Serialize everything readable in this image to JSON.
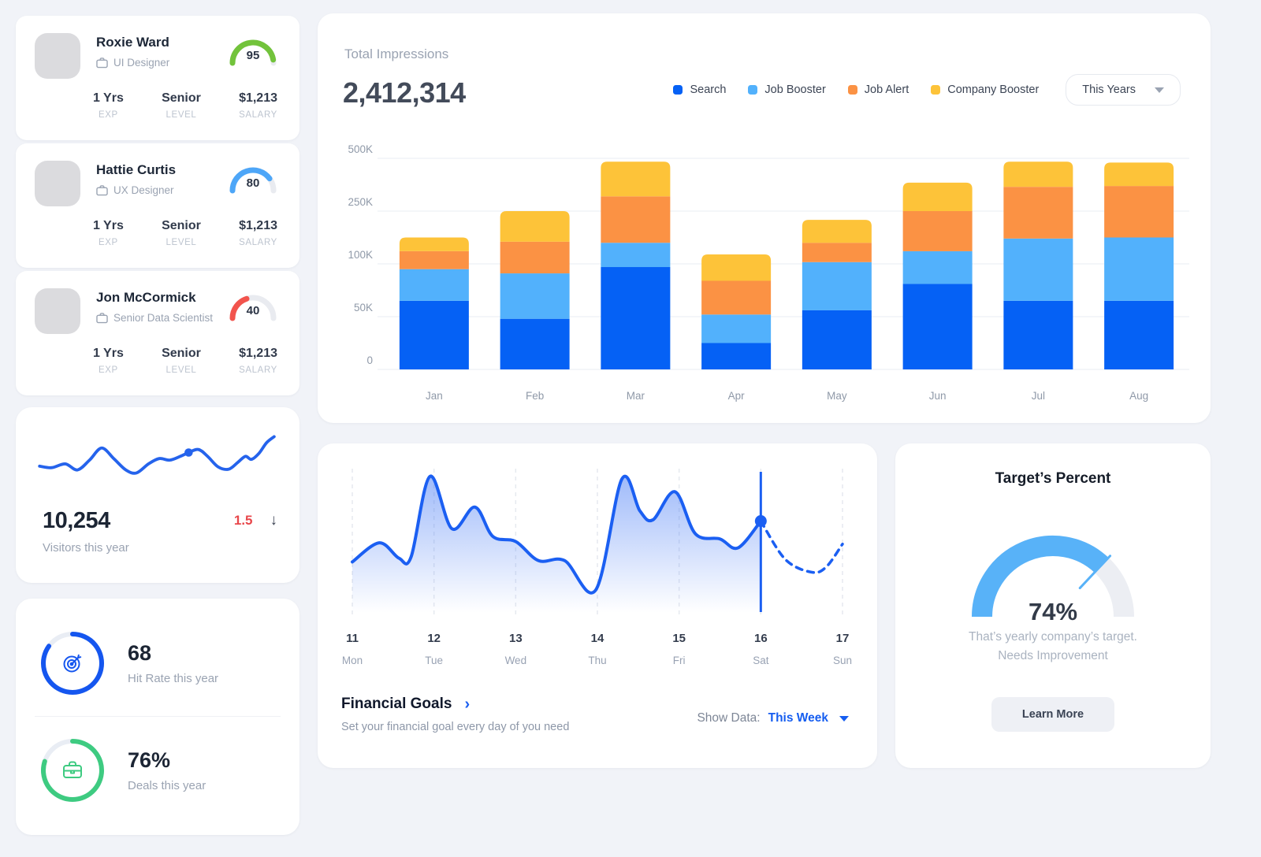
{
  "employees": {
    "items": [
      {
        "name": "Roxie Ward",
        "role": "UI Designer",
        "score": 95,
        "gauge_color": "#72c33b",
        "stats": {
          "exp_value": "1 Yrs",
          "exp_label": "EXP",
          "level_value": "Senior",
          "level_label": "LEVEL",
          "salary_value": "$1,213",
          "salary_label": "SALARY"
        }
      },
      {
        "name": "Hattie Curtis",
        "role": "UX Designer",
        "score": 80,
        "gauge_color": "#4da6f8",
        "stats": {
          "exp_value": "1 Yrs",
          "exp_label": "EXP",
          "level_value": "Senior",
          "level_label": "LEVEL",
          "salary_value": "$1,213",
          "salary_label": "SALARY"
        }
      },
      {
        "name": "Jon McCormick",
        "role": "Senior Data Scientist",
        "score": 40,
        "gauge_color": "#f2544d",
        "stats": {
          "exp_value": "1 Yrs",
          "exp_label": "EXP",
          "level_value": "Senior",
          "level_label": "LEVEL",
          "salary_value": "$1,213",
          "salary_label": "SALARY"
        }
      }
    ]
  },
  "visitors": {
    "value": "10,254",
    "label": "Visitors this year",
    "delta": "1.5",
    "delta_color": "#e8474b",
    "arrow_glyph": "↓",
    "chart_data": {
      "type": "line",
      "line_color": "#2563ec",
      "points": [
        [
          0,
          55
        ],
        [
          16,
          57
        ],
        [
          34,
          52
        ],
        [
          50,
          60
        ],
        [
          66,
          47
        ],
        [
          82,
          31
        ],
        [
          98,
          45
        ],
        [
          114,
          60
        ],
        [
          128,
          64
        ],
        [
          144,
          52
        ],
        [
          158,
          45
        ],
        [
          172,
          47
        ],
        [
          186,
          42
        ],
        [
          197,
          37
        ],
        [
          210,
          33
        ],
        [
          222,
          42
        ],
        [
          236,
          56
        ],
        [
          250,
          59
        ],
        [
          262,
          50
        ],
        [
          272,
          42
        ],
        [
          280,
          46
        ],
        [
          290,
          38
        ],
        [
          300,
          24
        ],
        [
          310,
          16
        ]
      ],
      "marker": [
        197,
        37
      ]
    }
  },
  "metrics": {
    "hit_rate": {
      "value": "68",
      "label": "Hit Rate this year",
      "percent": 85,
      "color": "#1556ef"
    },
    "deals": {
      "value": "76%",
      "label": "Deals this year",
      "percent": 80,
      "color": "#3ecb81"
    }
  },
  "impressions": {
    "title": "Total Impressions",
    "total": "2,412,314",
    "filter_label": "This Years",
    "chart_data": {
      "type": "bar",
      "stacked": true,
      "unit": "thousand impressions",
      "categories": [
        "Jan",
        "Feb",
        "Mar",
        "Apr",
        "May",
        "Jun",
        "Jul",
        "Aug"
      ],
      "series": [
        {
          "name": "Search",
          "color": "#0561f5",
          "values": [
            65,
            48,
            97,
            25,
            56,
            81,
            65,
            65
          ]
        },
        {
          "name": "Job Booster",
          "color": "#52b1fc",
          "values": [
            30,
            43,
            63,
            27,
            49,
            55,
            107,
            110
          ]
        },
        {
          "name": "Job Alert",
          "color": "#fb9244",
          "values": [
            41,
            72,
            160,
            32,
            55,
            114,
            193,
            194
          ]
        },
        {
          "name": "Company Booster",
          "color": "#fdc339",
          "values": [
            39,
            87,
            164,
            43,
            65,
            135,
            119,
            111
          ]
        }
      ],
      "y_ticks": {
        "values": [
          0,
          50,
          100,
          250,
          500
        ],
        "labels": [
          "0",
          "50K",
          "100K",
          "250K",
          "500K"
        ],
        "note": "ticks evenly spaced (non-linear axis)"
      },
      "legend_position": "top-right",
      "grid": "horizontal"
    }
  },
  "financial": {
    "title": "Financial Goals",
    "chevron": "›",
    "subtitle": "Set your financial goal every day of you need",
    "show_data_label": "Show Data:",
    "show_data_value": "This Week",
    "chart_data": {
      "type": "area",
      "line_color": "#1b5ff2",
      "y_range": [
        0,
        100
      ],
      "days": [
        {
          "num": "11",
          "name": "Mon"
        },
        {
          "num": "12",
          "name": "Tue"
        },
        {
          "num": "13",
          "name": "Wed"
        },
        {
          "num": "14",
          "name": "Thu"
        },
        {
          "num": "15",
          "name": "Fri"
        },
        {
          "num": "16",
          "name": "Sat"
        },
        {
          "num": "17",
          "name": "Sun"
        }
      ],
      "solid_points": [
        [
          0,
          30
        ],
        [
          0.33,
          45
        ],
        [
          0.57,
          33
        ],
        [
          0.72,
          34
        ],
        [
          0.95,
          97
        ],
        [
          1.22,
          56
        ],
        [
          1.5,
          73
        ],
        [
          1.72,
          50
        ],
        [
          2.0,
          46
        ],
        [
          2.28,
          31
        ],
        [
          2.6,
          31
        ],
        [
          2.98,
          8
        ],
        [
          3.3,
          95
        ],
        [
          3.52,
          70
        ],
        [
          3.68,
          63
        ],
        [
          3.95,
          85
        ],
        [
          4.2,
          52
        ],
        [
          4.5,
          48
        ],
        [
          4.72,
          41
        ],
        [
          5.0,
          62
        ]
      ],
      "dashed_points": [
        [
          5.0,
          62
        ],
        [
          5.3,
          32
        ],
        [
          5.62,
          22
        ],
        [
          5.8,
          26
        ],
        [
          6.0,
          44
        ]
      ],
      "marker": {
        "x": 5,
        "y": 62
      }
    }
  },
  "target": {
    "title": "Target’s Percent",
    "value": 74,
    "percent_display": "74%",
    "arc_color": "#58b2f8",
    "caption_line1": "That’s yearly company’s target.",
    "caption_line2": "Needs Improvement",
    "button_label": "Learn More"
  }
}
